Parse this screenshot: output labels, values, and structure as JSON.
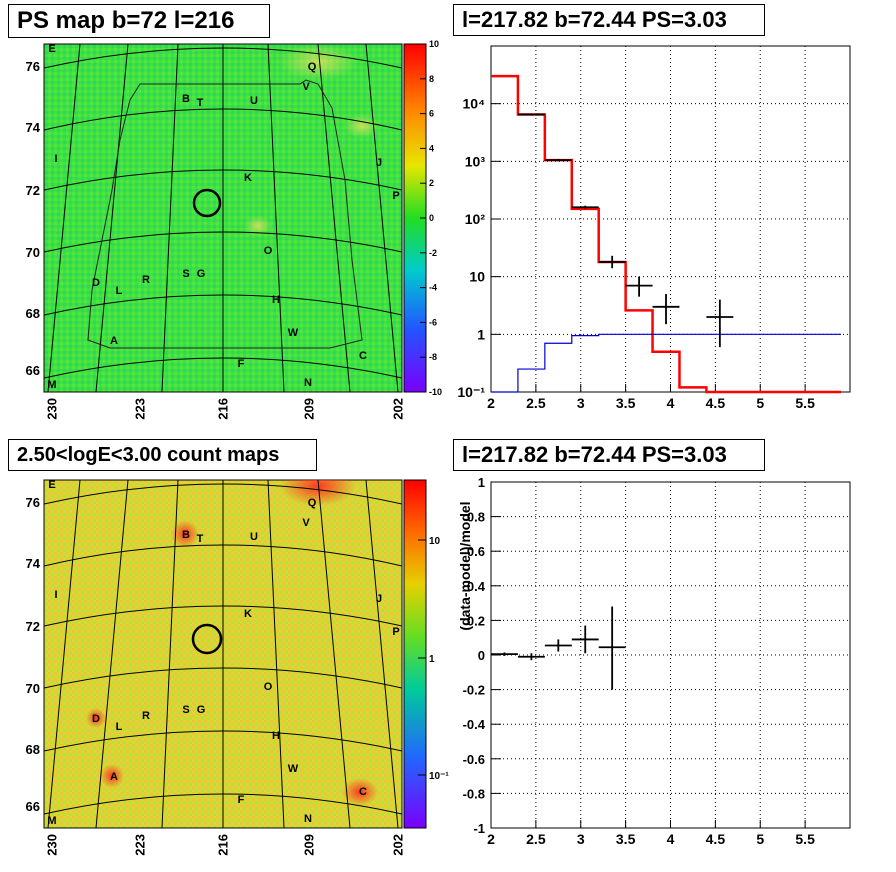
{
  "panels": {
    "tl": {
      "title": "PS map b=72 l=216"
    },
    "tr": {
      "title": "l=217.82 b=72.44 PS=3.03"
    },
    "bl": {
      "title": "2.50<logE<3.00 count maps"
    },
    "br": {
      "title": "l=217.82 b=72.44 PS=3.03"
    }
  },
  "colors": {
    "map_background": "#3ee04a",
    "count_background": "#d8d832",
    "data": "#000000",
    "model": "#ff0000",
    "background_model": "#0000cc",
    "grid": "#000000"
  },
  "sky_axes": {
    "x_ticks": [
      "230",
      "223",
      "216",
      "209",
      "202"
    ],
    "y_ticks": [
      "76",
      "74",
      "72",
      "70",
      "68",
      "66"
    ]
  },
  "sources": [
    "E",
    "Q",
    "B",
    "T",
    "U",
    "V",
    "I",
    "J",
    "K",
    "P",
    "O",
    "D",
    "L",
    "R",
    "S",
    "G",
    "H",
    "A",
    "W",
    "F",
    "C",
    "M",
    "N"
  ],
  "colorbars": {
    "ps": {
      "labels": [
        "10",
        "8",
        "6",
        "4",
        "2",
        "0",
        "-2",
        "-4",
        "-6",
        "-8",
        "-10"
      ]
    },
    "counts": {
      "labels": [
        "10",
        "1",
        "10⁻¹"
      ]
    }
  },
  "chart_data": [
    {
      "type": "heatmap",
      "title": "PS map b=72 l=216",
      "colorbar_range": [
        -10,
        10
      ],
      "x_tick_labels": [
        "230",
        "223",
        "216",
        "209",
        "202"
      ],
      "y_tick_labels": [
        "76",
        "74",
        "72",
        "70",
        "68",
        "66"
      ],
      "marked_position": {
        "l": 217.82,
        "b": 72.44
      }
    },
    {
      "type": "line",
      "title": "l=217.82 b=72.44 PS=3.03",
      "xlim": [
        2,
        6
      ],
      "ylim": [
        0.1,
        100000
      ],
      "ylog": true,
      "grid": true,
      "x_tick_labels": [
        "2",
        "2.5",
        "3",
        "3.5",
        "4",
        "4.5",
        "5",
        "5.5"
      ],
      "y_tick_labels": [
        "10⁻¹",
        "1",
        "10",
        "10²",
        "10³",
        "10⁴"
      ],
      "series": [
        {
          "kind": "model_step_red",
          "bin_edges": [
            2,
            2.3,
            2.6,
            2.9,
            3.2,
            3.5,
            3.8,
            4.1,
            4.4,
            4.7,
            5.0,
            5.3,
            5.6,
            5.9
          ],
          "values": [
            30000,
            6500,
            1050,
            150,
            18,
            2.6,
            0.5,
            0.12,
            0.1,
            0.1,
            0.1,
            0.1,
            0.1
          ]
        },
        {
          "kind": "background_step_blue",
          "bin_edges": [
            2,
            2.3,
            2.6,
            2.9,
            3.2,
            5.9
          ],
          "values": [
            0.1,
            0.25,
            0.7,
            0.95,
            1.0
          ]
        },
        {
          "kind": "data_points",
          "x": [
            2.45,
            2.75,
            3.05,
            3.35,
            3.65,
            3.95,
            4.55
          ],
          "y": [
            6500,
            1050,
            160,
            18,
            7,
            3,
            2
          ],
          "xerr": [
            0.15,
            0.15,
            0.15,
            0.15,
            0.15,
            0.15,
            0.15
          ],
          "ylo": [
            6300,
            1000,
            150,
            14,
            4.5,
            1.5,
            0.6
          ],
          "yhi": [
            6700,
            1100,
            170,
            23,
            10,
            5,
            4
          ]
        }
      ]
    },
    {
      "type": "heatmap",
      "title": "2.50<logE<3.00 count maps",
      "colorbar_scale": "log",
      "colorbar_tick_labels": [
        "10",
        "1",
        "10⁻¹"
      ],
      "x_tick_labels": [
        "230",
        "223",
        "216",
        "209",
        "202"
      ],
      "y_tick_labels": [
        "76",
        "74",
        "72",
        "70",
        "68",
        "66"
      ],
      "marked_position": {
        "l": 217.82,
        "b": 72.44
      }
    },
    {
      "type": "scatter",
      "title": "l=217.82 b=72.44 PS=3.03",
      "ylabel": "(data-model)/model",
      "xlim": [
        2,
        6
      ],
      "ylim": [
        -1,
        1
      ],
      "grid": true,
      "x_tick_labels": [
        "2",
        "2.5",
        "3",
        "3.5",
        "4",
        "4.5",
        "5",
        "5.5"
      ],
      "y_tick_labels": [
        "1",
        "0.8",
        "0.6",
        "0.4",
        "0.2",
        "0",
        "-0.2",
        "-0.4",
        "-0.6",
        "-0.8",
        "-1"
      ],
      "x": [
        2.15,
        2.45,
        2.75,
        3.05,
        3.35
      ],
      "y": [
        0.005,
        -0.01,
        0.055,
        0.09,
        0.045
      ],
      "xerr": [
        0.15,
        0.15,
        0.15,
        0.15,
        0.15
      ],
      "ylo": [
        -0.005,
        -0.03,
        0.02,
        0.01,
        -0.2
      ],
      "yhi": [
        0.015,
        0.01,
        0.09,
        0.17,
        0.28
      ]
    }
  ]
}
